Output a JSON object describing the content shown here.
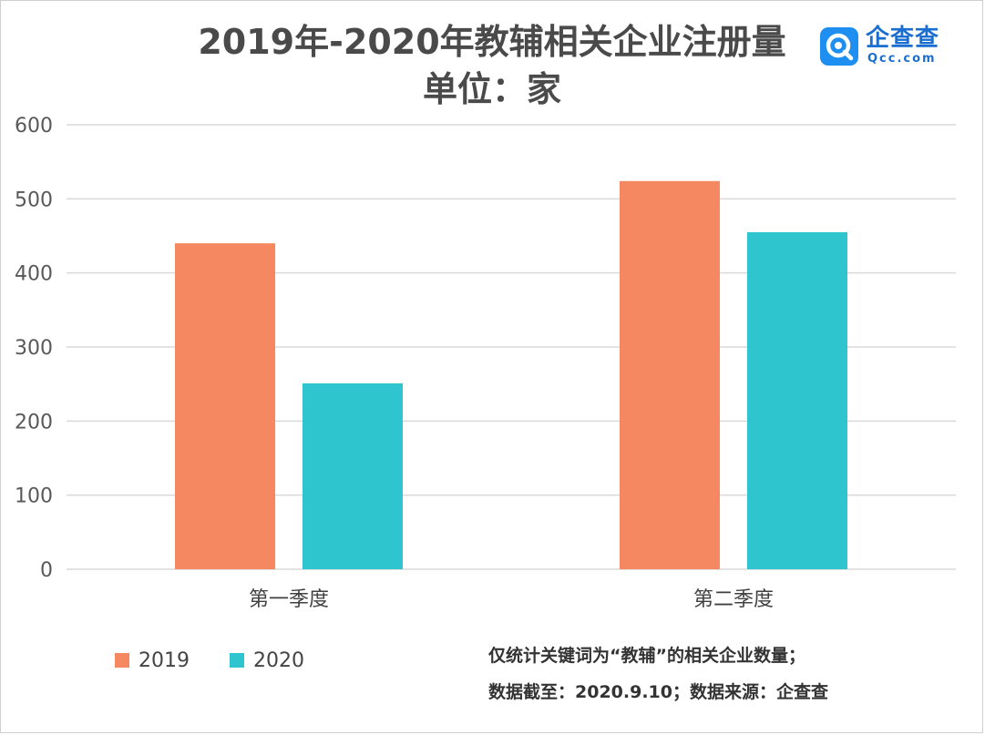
{
  "chart_data": {
    "type": "bar",
    "title": "2019年-2020年教辅相关企业注册量",
    "subtitle": "单位：家",
    "categories": [
      "第一季度",
      "第二季度"
    ],
    "series": [
      {
        "name": "2019",
        "values": [
          440,
          524
        ]
      },
      {
        "name": "2020",
        "values": [
          251,
          455
        ]
      }
    ],
    "ylim": [
      0,
      600
    ],
    "yticks": [
      0,
      100,
      200,
      300,
      400,
      500,
      600
    ],
    "grid": true,
    "legend": "bottom-left"
  },
  "colors": {
    "series_2019": "#f58860",
    "series_2020": "#2ec5cf",
    "grid": "#d9d9d9",
    "axis_text": "#595959"
  },
  "logo": {
    "name": "企查查",
    "domain": "Qcc.com",
    "icon": "qcc-logo-icon"
  },
  "notes": [
    "仅统计关键词为“教辅”的相关企业数量；",
    "数据截至：2020.9.10；数据来源：企查查"
  ]
}
